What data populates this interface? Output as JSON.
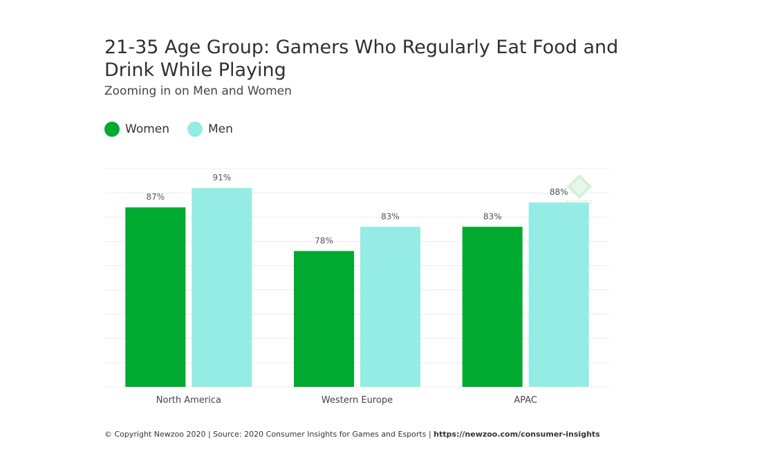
{
  "header": {
    "title": "21-35 Age Group: Gamers Who Regularly Eat Food and Drink While Playing",
    "subtitle": "Zooming in on Men and Women"
  },
  "legend": [
    {
      "label": "Women",
      "color": "#00a92f"
    },
    {
      "label": "Men",
      "color": "#95ece4"
    }
  ],
  "chart_data": {
    "type": "bar",
    "title": "21-35 Age Group: Gamers Who Regularly Eat Food and Drink While Playing",
    "subtitle": "Zooming in on Men and Women",
    "categories": [
      "North America",
      "Western Europe",
      "APAC"
    ],
    "series": [
      {
        "name": "Women",
        "color": "#00a92f",
        "values": [
          87,
          78,
          83
        ],
        "labels": [
          "87%",
          "78%",
          "83%"
        ]
      },
      {
        "name": "Men",
        "color": "#95ece4",
        "values": [
          91,
          83,
          88
        ],
        "labels": [
          "91%",
          "83%",
          "88%"
        ]
      }
    ],
    "xlabel": "",
    "ylabel": "",
    "ylim": [
      50,
      95
    ],
    "grid": true,
    "legend_position": "top-left"
  },
  "watermark": {
    "text": "NEWZOO"
  },
  "footer": {
    "text": "© Copyright Newzoo 2020 | Source: 2020 Consumer Insights for Games and Esports | ",
    "link": "https://newzoo.com/consumer-insights"
  }
}
